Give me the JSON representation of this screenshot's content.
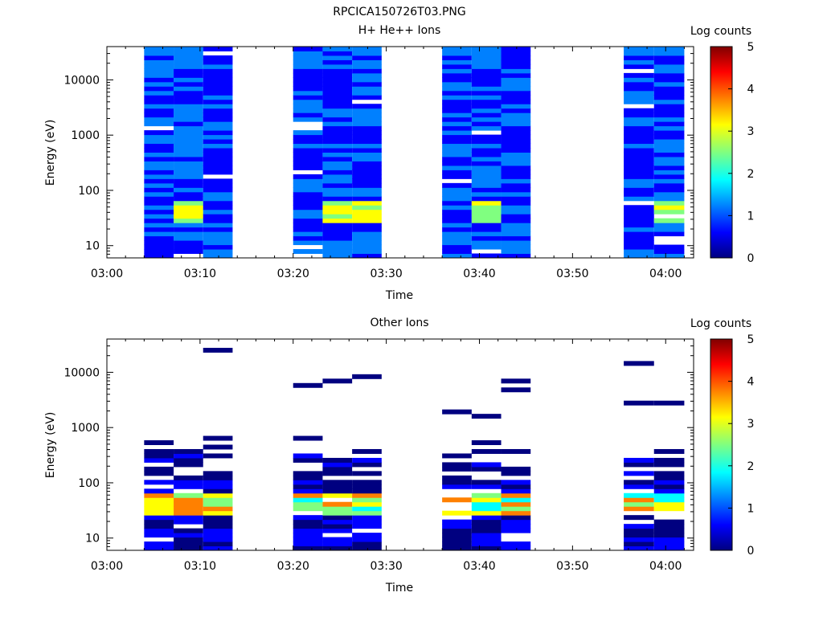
{
  "figure": {
    "title": "RPCICA150726T03.PNG"
  },
  "chart_data": [
    {
      "type": "heatmap",
      "title": "H+ He++ Ions",
      "xlabel": "Time",
      "ylabel": "Energy (eV)",
      "colorbar_label": "Log counts",
      "x_ticks": [
        "03:00",
        "03:10",
        "03:20",
        "03:30",
        "03:40",
        "03:50",
        "04:00"
      ],
      "xlim_minutes": [
        0,
        63
      ],
      "y_scale": "log",
      "ylim": [
        6,
        40000
      ],
      "y_ticks": [
        10,
        100,
        1000,
        10000
      ],
      "y_ticklabels": [
        "10",
        "100",
        "1000",
        "10000"
      ],
      "colorbar_ticks": [
        "0",
        "1",
        "2",
        "3",
        "4",
        "5"
      ],
      "zlim": [
        0,
        5
      ],
      "grid": false,
      "observation_intervals_minutes": [
        [
          4,
          13.5
        ],
        [
          20,
          29.5
        ],
        [
          36,
          45.5
        ],
        [
          55.5,
          62
        ]
      ]
    },
    {
      "type": "heatmap",
      "title": "Other Ions",
      "xlabel": "Time",
      "ylabel": "Energy (eV)",
      "colorbar_label": "Log counts",
      "x_ticks": [
        "03:00",
        "03:10",
        "03:20",
        "03:30",
        "03:40",
        "03:50",
        "04:00"
      ],
      "xlim_minutes": [
        0,
        63
      ],
      "y_scale": "log",
      "ylim": [
        6,
        40000
      ],
      "y_ticks": [
        10,
        100,
        1000,
        10000
      ],
      "y_ticklabels": [
        "10",
        "100",
        "1000",
        "10000"
      ],
      "colorbar_ticks": [
        "0",
        "1",
        "2",
        "3",
        "4",
        "5"
      ],
      "zlim": [
        0,
        5
      ],
      "grid": false,
      "observation_intervals_minutes": [
        [
          4,
          13.5
        ],
        [
          20,
          29.5
        ],
        [
          36,
          45.5
        ],
        [
          55.5,
          62
        ]
      ]
    }
  ],
  "colormap": [
    "#000080",
    "#0000ff",
    "#0080ff",
    "#00ffff",
    "#80ff80",
    "#ffff00",
    "#ff8000",
    "#ff0000",
    "#800000"
  ]
}
